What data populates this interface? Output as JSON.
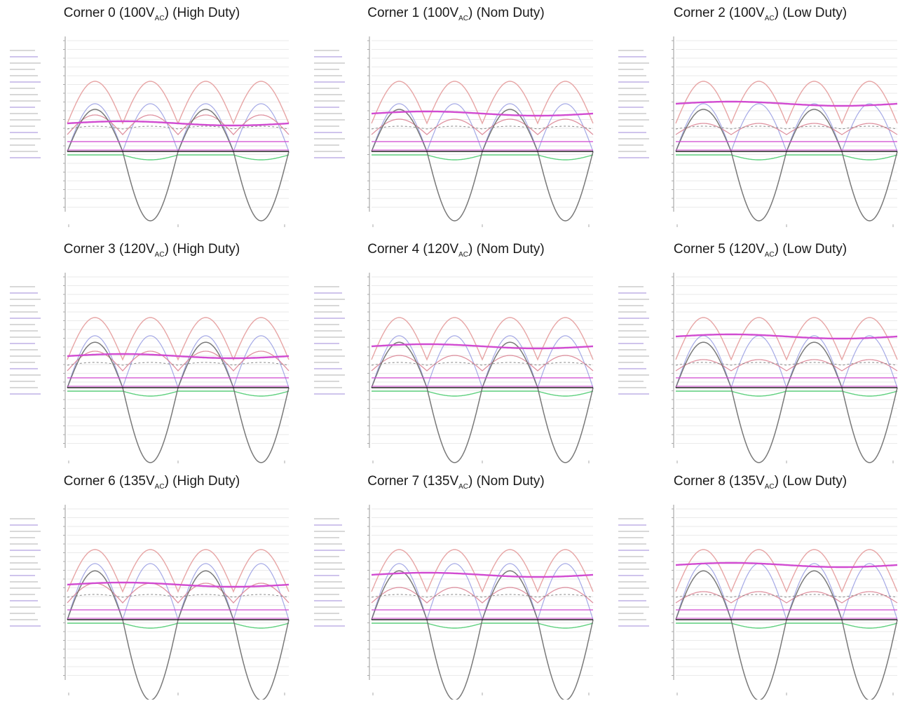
{
  "chart_data": [
    {
      "type": "line",
      "title_prefix": "Corner 0 (100V",
      "title_sub": "AC",
      "title_suffix": ") (High Duty)",
      "vac": 100,
      "duty": "High"
    },
    {
      "type": "line",
      "title_prefix": "Corner 1 (100V",
      "title_sub": "AC",
      "title_suffix": ") (Nom Duty)",
      "vac": 100,
      "duty": "Nom"
    },
    {
      "type": "line",
      "title_prefix": "Corner 2 (100V",
      "title_sub": "AC",
      "title_suffix": ") (Low Duty)",
      "vac": 100,
      "duty": "Low"
    },
    {
      "type": "line",
      "title_prefix": "Corner 3 (120V",
      "title_sub": "AC",
      "title_suffix": ") (High Duty)",
      "vac": 120,
      "duty": "High"
    },
    {
      "type": "line",
      "title_prefix": "Corner 4 (120V",
      "title_sub": "AC",
      "title_suffix": ") (Nom Duty)",
      "vac": 120,
      "duty": "Nom"
    },
    {
      "type": "line",
      "title_prefix": "Corner 5 (120V",
      "title_sub": "AC",
      "title_suffix": ") (Low Duty)",
      "vac": 120,
      "duty": "Low"
    },
    {
      "type": "line",
      "title_prefix": "Corner 6 (135V",
      "title_sub": "AC",
      "title_suffix": ") (High Duty)",
      "vac": 135,
      "duty": "High"
    },
    {
      "type": "line",
      "title_prefix": "Corner 7 (135V",
      "title_sub": "AC",
      "title_suffix": ") (Nom Duty)",
      "vac": 135,
      "duty": "Nom"
    },
    {
      "type": "line",
      "title_prefix": "Corner 8 (135V",
      "title_sub": "AC",
      "title_suffix": ") (Low Duty)",
      "vac": 135,
      "duty": "Low"
    }
  ],
  "colors": {
    "rectified": "#e7a5a5",
    "ac_sine": "#6a6a6a",
    "bulk_dc": "#d14bd1",
    "secondary": "#8f94e0",
    "ripple": "#d97f8f",
    "dashed": "#8a8a8a",
    "current": "#5fd07f",
    "zero": "#222222",
    "grid": "#e3e3e3"
  }
}
